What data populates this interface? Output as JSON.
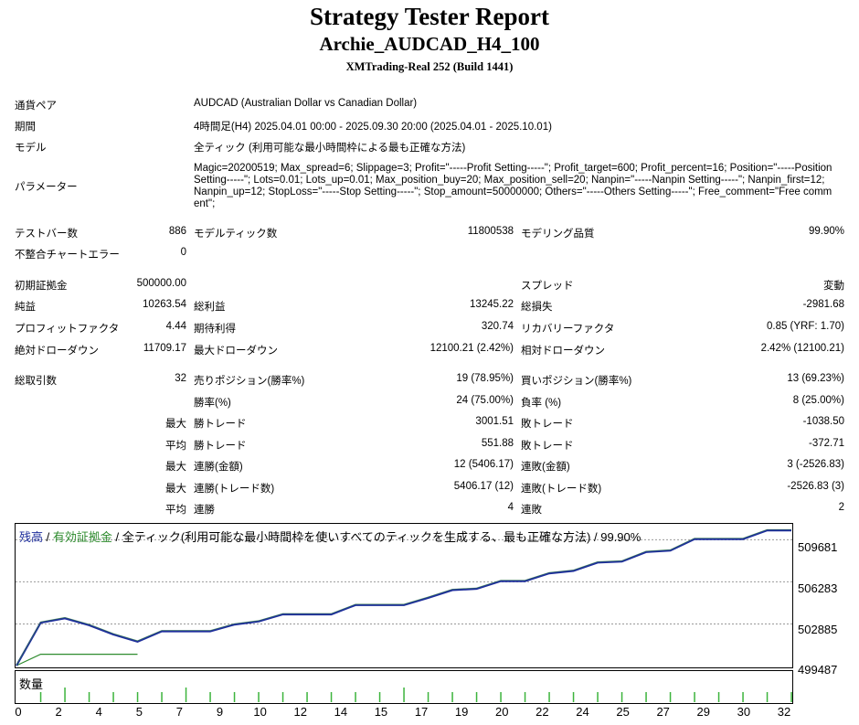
{
  "header": {
    "title": "Strategy Tester Report",
    "subtitle": "Archie_AUDCAD_H4_100",
    "server": "XMTrading-Real 252 (Build 1441)"
  },
  "settings": {
    "symbol_label": "通貨ペア",
    "symbol_value": "AUDCAD (Australian Dollar vs Canadian Dollar)",
    "period_label": "期間",
    "period_value": "4時間足(H4) 2025.04.01 00:00 - 2025.09.30 20:00 (2025.04.01 - 2025.10.01)",
    "model_label": "モデル",
    "model_value": "全ティック (利用可能な最小時間枠による最も正確な方法)",
    "params_label": "パラメーター",
    "params_value": "Magic=20200519; Max_spread=6; Slippage=3; Profit=\"-----Profit Setting-----\"; Profit_target=600; Profit_percent=16; Position=\"-----Position Setting-----\"; Lots=0.01; Lots_up=0.01; Max_position_buy=20; Max_position_sell=20; Nanpin=\"-----Nanpin Setting-----\"; Nanpin_first=12; Nanpin_up=12; StopLoss=\"-----Stop Setting-----\"; Stop_amount=50000000; Others=\"-----Others Setting-----\"; Free_comment=\"Free comment\";"
  },
  "bars": {
    "bars_label": "テストバー数",
    "bars_value": "886",
    "ticks_label": "モデルティック数",
    "ticks_value": "11800538",
    "quality_label": "モデリング品質",
    "quality_value": "99.90%",
    "errors_label": "不整合チャートエラー",
    "errors_value": "0"
  },
  "results": {
    "deposit_label": "初期証拠金",
    "deposit_value": "500000.00",
    "spread_label": "スプレッド",
    "spread_value": "変動",
    "net_label": "純益",
    "net_value": "10263.54",
    "gross_profit_label": "総利益",
    "gross_profit_value": "13245.22",
    "gross_loss_label": "総損失",
    "gross_loss_value": "-2981.68",
    "pf_label": "プロフィットファクタ",
    "pf_value": "4.44",
    "payoff_label": "期待利得",
    "payoff_value": "320.74",
    "recovery_label": "リカバリーファクタ",
    "recovery_value": "0.85 (YRF: 1.70)",
    "abs_dd_label": "絶対ドローダウン",
    "abs_dd_value": "11709.17",
    "max_dd_label": "最大ドローダウン",
    "max_dd_value": "12100.21 (2.42%)",
    "rel_dd_label": "相対ドローダウン",
    "rel_dd_value": "2.42% (12100.21)"
  },
  "trades": {
    "total_label": "総取引数",
    "total_value": "32",
    "short_label": "売りポジション(勝率%)",
    "short_value": "19 (78.95%)",
    "long_label": "買いポジション(勝率%)",
    "long_value": "13 (69.23%)",
    "win_label": "勝率(%)",
    "win_value": "24 (75.00%)",
    "loss_label": "負率 (%)",
    "loss_value": "8 (25.00%)",
    "max1": "最大",
    "max_win_label": "勝トレード",
    "max_win_value": "3001.51",
    "max_loss_label": "敗トレード",
    "max_loss_value": "-1038.50",
    "avg1": "平均",
    "avg_win_label": "勝トレード",
    "avg_win_value": "551.88",
    "avg_loss_label": "敗トレード",
    "avg_loss_value": "-372.71",
    "max2": "最大",
    "cons_win_money_label": "連勝(金額)",
    "cons_win_money_value": "12 (5406.17)",
    "cons_loss_money_label": "連敗(金額)",
    "cons_loss_money_value": "3 (-2526.83)",
    "max3": "最大",
    "cons_win_count_label": "連勝(トレード数)",
    "cons_win_count_value": "5406.17 (12)",
    "cons_loss_count_label": "連敗(トレード数)",
    "cons_loss_count_value": "-2526.83 (3)",
    "avg2": "平均",
    "avg_cons_win_label": "連勝",
    "avg_cons_win_value": "4",
    "avg_cons_loss_label": "連敗",
    "avg_cons_loss_value": "2"
  },
  "chart_legend": {
    "balance": "残高",
    "sep1": " / ",
    "equity": "有効証拠金",
    "rest": " / 全ティック(利用可能な最小時間枠を使いすべてのティックを生成する、最も正確な方法) / 99.90%"
  },
  "volume_label": "数量",
  "chart_data": {
    "type": "line",
    "x_ticks": [
      "0",
      "2",
      "4",
      "5",
      "7",
      "9",
      "10",
      "12",
      "14",
      "15",
      "17",
      "19",
      "20",
      "22",
      "24",
      "25",
      "27",
      "29",
      "30",
      "32"
    ],
    "y_ticks": [
      "509681",
      "506283",
      "502885",
      "499487"
    ],
    "ylim": [
      499487,
      510700
    ],
    "series": [
      {
        "name": "残高",
        "color": "#1f2f9c",
        "x": [
          0,
          1,
          2,
          3,
          4,
          5,
          6,
          7,
          8,
          9,
          10,
          11,
          12,
          13,
          14,
          15,
          16,
          17,
          18,
          19,
          20,
          21,
          22,
          23,
          24,
          25,
          26,
          27,
          28,
          29,
          30,
          31,
          32
        ],
        "y": [
          499487,
          502950,
          503300,
          502750,
          502000,
          501420,
          502250,
          502250,
          502250,
          502800,
          503050,
          503620,
          503620,
          503620,
          504370,
          504370,
          504370,
          504950,
          505580,
          505680,
          506300,
          506300,
          506930,
          507130,
          507800,
          507880,
          508650,
          508770,
          509700,
          509700,
          509700,
          510400,
          510400
        ]
      },
      {
        "name": "有効証拠金",
        "color": "#2e8b2e",
        "x": [
          0,
          1,
          2,
          3,
          4,
          5
        ],
        "y": [
          499487,
          500400,
          500400,
          500400,
          500400,
          500400
        ]
      }
    ],
    "volume": {
      "x": [
        1,
        2,
        3,
        4,
        5,
        6,
        7,
        8,
        9,
        10,
        11,
        12,
        13,
        14,
        15,
        16,
        17,
        18,
        19,
        20,
        21,
        22,
        23,
        24,
        25,
        26,
        27,
        28,
        29,
        30,
        31,
        32
      ],
      "y": [
        1,
        2,
        1,
        1,
        1,
        1,
        2,
        1,
        1,
        1,
        1,
        1,
        1,
        1,
        1,
        2,
        1,
        1,
        1,
        1,
        1,
        1,
        1,
        1,
        1,
        1,
        1,
        1,
        1,
        1,
        1,
        1
      ]
    }
  }
}
